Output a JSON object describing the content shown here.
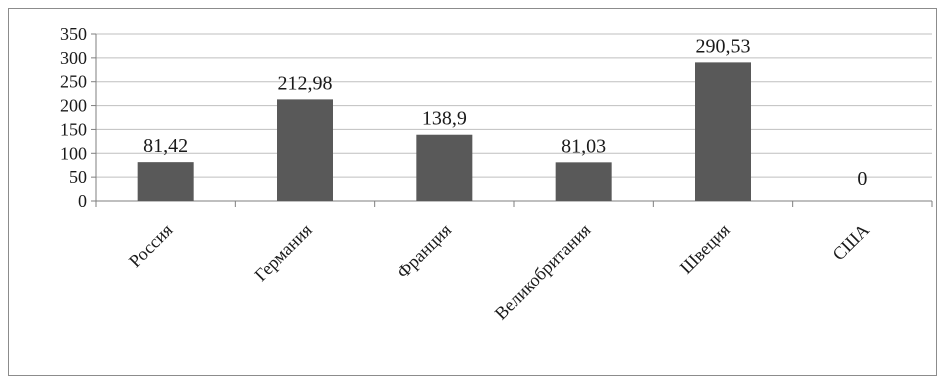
{
  "chart_data": {
    "type": "bar",
    "categories": [
      "Россия",
      "Германия",
      "Франция",
      "Великобритания",
      "Швеция",
      "США"
    ],
    "values": [
      81.42,
      212.98,
      138.9,
      81.03,
      290.53,
      0
    ],
    "data_labels": [
      "81,42",
      "212,98",
      "138,9",
      "81,03",
      "290,53",
      "0"
    ],
    "y_ticks": [
      "0",
      "50",
      "100",
      "150",
      "200",
      "250",
      "300",
      "350"
    ],
    "ylim": [
      0,
      350
    ],
    "title": "",
    "xlabel": "",
    "ylabel": "",
    "grid": true,
    "legend": "none",
    "bar_color": "#595959",
    "grid_color": "#bfbfbf",
    "axis_color": "#7f7f7f"
  }
}
